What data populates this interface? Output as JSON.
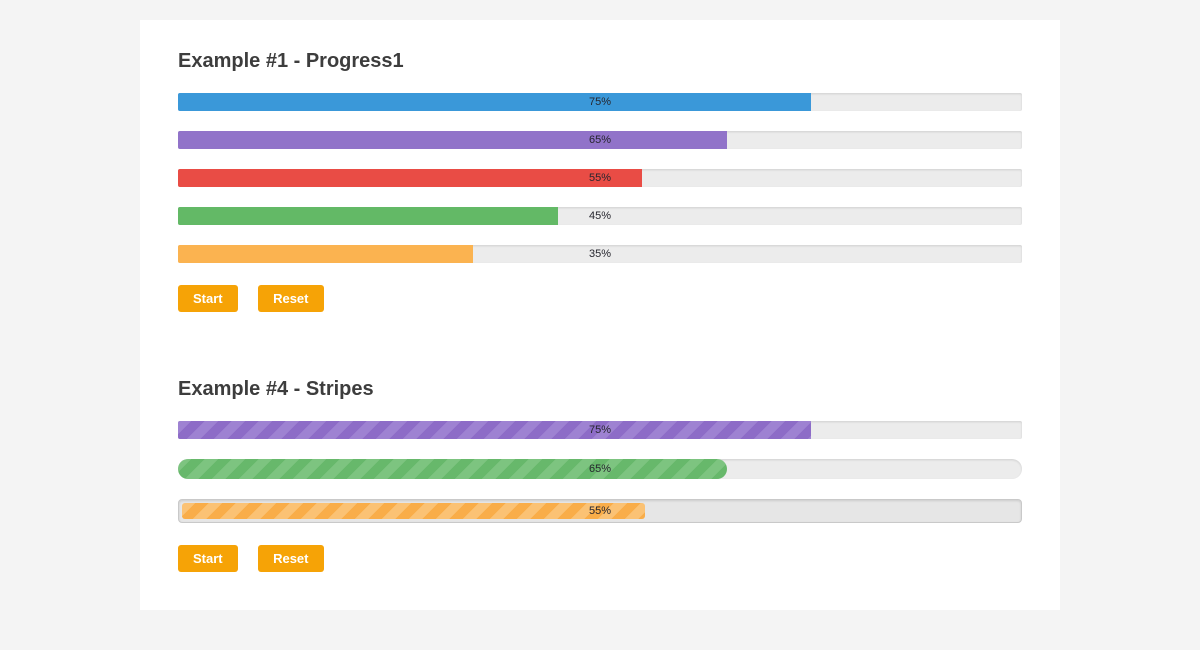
{
  "page": {
    "background_color": "#f4f4f4",
    "card_background_color": "#ffffff",
    "label_color": "#26262e",
    "button_color": "#f6a306"
  },
  "sections": [
    {
      "title": "Example #1 - Progress1",
      "bars": [
        {
          "label": "75%",
          "value": 75,
          "color": "#3a98d9"
        },
        {
          "label": "65%",
          "value": 65,
          "color": "#9173c9"
        },
        {
          "label": "55%",
          "value": 55,
          "color": "#e94c45"
        },
        {
          "label": "45%",
          "value": 45,
          "color": "#63b966"
        },
        {
          "label": "35%",
          "value": 35,
          "color": "#fbb350"
        }
      ],
      "buttons": {
        "start": "Start",
        "reset": "Reset"
      }
    },
    {
      "title": "Example #4 - Stripes",
      "bars": [
        {
          "label": "75%",
          "value": 75,
          "color": "#8d6cc7",
          "stripe": "#9e82d2",
          "shape": "square"
        },
        {
          "label": "65%",
          "value": 65,
          "color": "#67b86b",
          "stripe": "#7dc480",
          "shape": "pill"
        },
        {
          "label": "55%",
          "value": 55,
          "color": "#f9ad49",
          "stripe": "#fbc274",
          "shape": "inset"
        }
      ],
      "buttons": {
        "start": "Start",
        "reset": "Reset"
      }
    }
  ]
}
